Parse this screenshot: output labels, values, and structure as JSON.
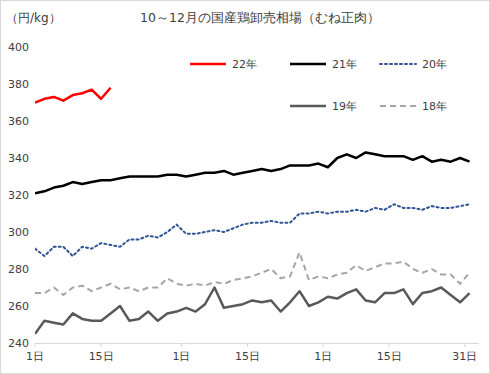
{
  "chart_data": {
    "type": "line",
    "title": "10～12月の国産鶏卸売相場（むね正肉）",
    "y_label": "（円/kg）",
    "x": [
      1,
      3,
      5,
      7,
      9,
      11,
      13,
      15,
      17,
      19,
      21,
      23,
      25,
      27,
      29,
      31,
      33,
      35,
      37,
      39,
      41,
      43,
      45,
      47,
      49,
      51,
      53,
      55,
      57,
      59,
      61,
      63,
      65,
      67,
      69,
      71,
      73,
      75,
      77,
      79,
      81,
      83,
      85,
      87,
      89,
      91,
      93
    ],
    "xlim": [
      1,
      95
    ],
    "xticks": [
      {
        "value": 1,
        "label": "1日"
      },
      {
        "value": 15,
        "label": "15日"
      },
      {
        "value": 32,
        "label": "1日"
      },
      {
        "value": 46,
        "label": "15日"
      },
      {
        "value": 62,
        "label": "1日"
      },
      {
        "value": 76,
        "label": "15日"
      },
      {
        "value": 92,
        "label": "31日"
      }
    ],
    "ylim": [
      240,
      400
    ],
    "yticks": [
      240,
      260,
      280,
      300,
      320,
      340,
      360,
      380,
      400
    ],
    "grid": false,
    "legend": "top-right",
    "series": [
      {
        "name": "22年",
        "color": "#ff0000",
        "line_style": "solid",
        "values": [
          370,
          372,
          373,
          371,
          374,
          375,
          377,
          372,
          378,
          null,
          null,
          null,
          null,
          null,
          null,
          null,
          null,
          null,
          null,
          null,
          null,
          null,
          null,
          null,
          null,
          null,
          null,
          null,
          null,
          null,
          null,
          null,
          null,
          null,
          null,
          null,
          null,
          null,
          null,
          null,
          null,
          null,
          null,
          null,
          null,
          null,
          null
        ]
      },
      {
        "name": "21年",
        "color": "#000000",
        "line_style": "solid",
        "values": [
          321,
          322,
          324,
          325,
          327,
          326,
          327,
          328,
          328,
          329,
          330,
          330,
          330,
          330,
          331,
          331,
          330,
          331,
          332,
          332,
          333,
          331,
          332,
          333,
          334,
          333,
          334,
          336,
          336,
          336,
          337,
          335,
          340,
          342,
          340,
          343,
          342,
          341,
          341,
          341,
          339,
          341,
          338,
          339,
          338,
          340,
          338
        ]
      },
      {
        "name": "20年",
        "color": "#2f5597",
        "line_style": "dotted",
        "values": [
          291,
          287,
          292,
          292,
          287,
          292,
          291,
          294,
          293,
          292,
          296,
          296,
          298,
          297,
          300,
          304,
          299,
          299,
          300,
          301,
          300,
          302,
          304,
          305,
          305,
          306,
          305,
          305,
          310,
          310,
          311,
          310,
          311,
          311,
          312,
          311,
          313,
          312,
          315,
          313,
          313,
          312,
          314,
          313,
          313,
          314,
          315
        ]
      },
      {
        "name": "19年",
        "color": "#595959",
        "line_style": "solid",
        "values": [
          245,
          252,
          251,
          250,
          256,
          253,
          252,
          252,
          256,
          260,
          252,
          253,
          257,
          252,
          256,
          257,
          259,
          257,
          261,
          270,
          259,
          260,
          261,
          263,
          262,
          263,
          257,
          262,
          268,
          260,
          262,
          265,
          264,
          267,
          269,
          263,
          262,
          267,
          267,
          269,
          261,
          267,
          268,
          270,
          266,
          262,
          267
        ]
      },
      {
        "name": "18年",
        "color": "#a6a6a6",
        "line_style": "dashed",
        "values": [
          267,
          267,
          270,
          266,
          270,
          271,
          268,
          270,
          272,
          269,
          270,
          268,
          270,
          270,
          275,
          272,
          271,
          272,
          271,
          273,
          272,
          274,
          275,
          276,
          278,
          280,
          275,
          276,
          289,
          274,
          276,
          275,
          277,
          278,
          282,
          279,
          281,
          283,
          283,
          284,
          280,
          278,
          280,
          277,
          277,
          272,
          278
        ]
      }
    ]
  }
}
